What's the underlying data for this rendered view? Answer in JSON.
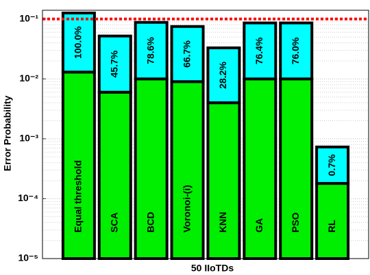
{
  "chart_data": {
    "type": "stacked_bar_log",
    "xlabel": "50 IIoTDs",
    "ylabel": "Error Probability",
    "categories": [
      "Equal threshold",
      "SCA",
      "BCD",
      "Voronoi-(i)",
      "KNN",
      "GA",
      "PSO",
      "RL"
    ],
    "series": [
      {
        "color": "#00ee00",
        "values": [
          0.013,
          0.006,
          0.01,
          0.009,
          0.004,
          0.01,
          0.01,
          0.00018
        ]
      },
      {
        "color": "#00ffff",
        "values": [
          0.113,
          0.046,
          0.078,
          0.066,
          0.029,
          0.076,
          0.076,
          0.00055
        ],
        "bar_labels": [
          "100.0%",
          "45.7%",
          "78.6%",
          "66.7%",
          "28.2%",
          "76.4%",
          "76.0%",
          "0.7%"
        ]
      }
    ],
    "log_scale": true,
    "ylim": [
      1e-05,
      0.14
    ],
    "yticks": [
      {
        "value": 1e-05,
        "label": "10⁻⁵"
      },
      {
        "value": 0.0001,
        "label": "10⁻⁴"
      },
      {
        "value": 0.001,
        "label": "10⁻³"
      },
      {
        "value": 0.01,
        "label": "10⁻²"
      },
      {
        "value": 0.1,
        "label": "10⁻¹"
      }
    ],
    "grid": true,
    "reference_line": {
      "value": 0.1,
      "color": "#ff0000"
    }
  }
}
